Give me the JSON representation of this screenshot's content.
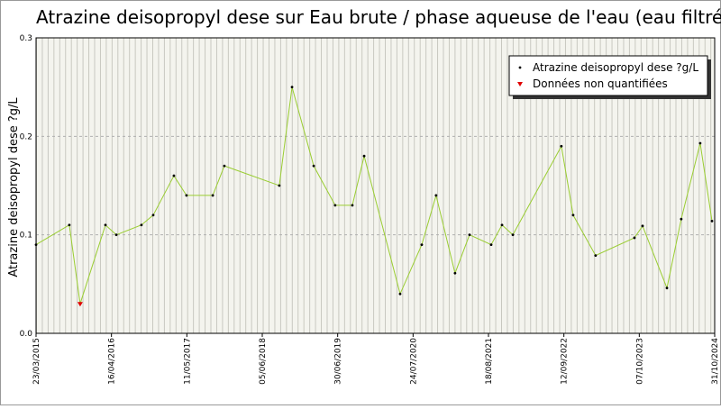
{
  "chart_data": {
    "type": "line",
    "title": "Atrazine deisopropyl dese sur Eau brute / phase aqueuse de l'eau (eau filtrée)",
    "y_label": "Atrazine deisopropyl dese ?g/L",
    "x": [
      "23/03/2015",
      "11/09/2015",
      "06/11/2015",
      "16/03/2016",
      "11/05/2016",
      "18/09/2016",
      "18/11/2016",
      "05/03/2017",
      "09/05/2017",
      "22/09/2017",
      "21/11/2017",
      "01/09/2018",
      "06/11/2018",
      "26/02/2019",
      "17/06/2019",
      "14/09/2019",
      "14/11/2019",
      "18/05/2020",
      "07/09/2020",
      "20/11/2020",
      "26/02/2021",
      "12/05/2021",
      "01/09/2021",
      "27/10/2021",
      "22/12/2021",
      "30/08/2022",
      "30/10/2022",
      "23/02/2023",
      "12/09/2023",
      "24/10/2023",
      "27/02/2024",
      "11/05/2024",
      "17/08/2024",
      "17/10/2024"
    ],
    "series": [
      {
        "name": "Atrazine deisopropyl dese ?g/L",
        "color": "#9acd32",
        "marker_color": "#000000",
        "values": [
          0.09,
          0.11,
          0.03,
          0.11,
          0.1,
          0.11,
          0.12,
          0.16,
          0.14,
          0.14,
          0.17,
          0.15,
          0.25,
          0.17,
          0.13,
          0.13,
          0.18,
          0.04,
          0.09,
          0.14,
          0.061,
          0.1,
          0.09,
          0.11,
          0.1,
          0.19,
          0.12,
          0.079,
          0.097,
          0.109,
          0.046,
          0.116,
          0.193,
          0.114
        ]
      },
      {
        "name": "Données non quantifiées",
        "color": "#e00000",
        "values": [
          null,
          null,
          0.03,
          null,
          null,
          null,
          null,
          null,
          null,
          null,
          null,
          null,
          null,
          null,
          null,
          null,
          null,
          null,
          null,
          null,
          null,
          null,
          null,
          null,
          null,
          null,
          null,
          null,
          null,
          null,
          null,
          null,
          null,
          null
        ]
      }
    ],
    "xlim": [
      "23/03/2015",
      "31/10/2024"
    ],
    "xticks": [
      "23/03/2015",
      "16/04/2016",
      "11/05/2017",
      "05/06/2018",
      "30/06/2019",
      "24/07/2020",
      "18/08/2021",
      "12/09/2022",
      "07/10/2023",
      "31/10/2024"
    ],
    "ylim": [
      0,
      0.3
    ],
    "yticks": [
      {
        "value": 0,
        "label": "0.0"
      },
      0.1,
      0.2,
      0.3
    ],
    "grid": true,
    "legend": "upper right"
  }
}
